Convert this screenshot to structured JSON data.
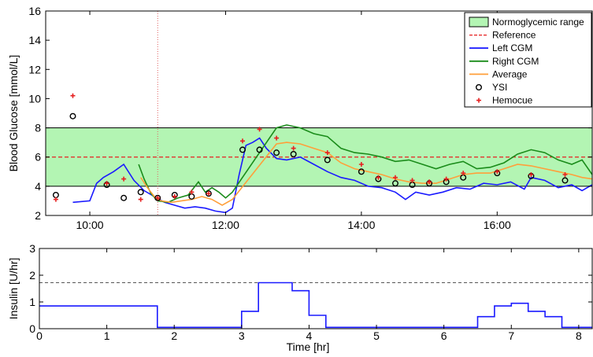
{
  "chart_data": [
    {
      "type": "line",
      "ylabel": "Blood Glucose [mmol/L]",
      "xlabel": "",
      "x_unit": "clock time (hours)",
      "xlim": [
        9.35,
        17.4
      ],
      "ylim": [
        2,
        16
      ],
      "x_ticks": [
        10,
        12,
        14,
        16
      ],
      "x_tick_labels": [
        "10:00",
        "12:00",
        "14:00",
        "16:00"
      ],
      "y_ticks": [
        2,
        4,
        6,
        8,
        10,
        12,
        14,
        16
      ],
      "y_tick_labels": [
        "2",
        "4",
        "6",
        "8",
        "10",
        "12",
        "14",
        "16"
      ],
      "grid": false,
      "legend_position": "top-right",
      "normoglycemic_range": {
        "label": "Normoglycemic range",
        "low": 4,
        "high": 8,
        "color": "#b3f5b3"
      },
      "reference": {
        "label": "Reference",
        "value": 6,
        "color": "#e62020"
      },
      "event_marker_x": 11.0,
      "series": [
        {
          "name": "Left CGM",
          "color": "#1a1aff",
          "x": [
            9.75,
            10.0,
            10.1,
            10.2,
            10.35,
            10.5,
            10.65,
            10.8,
            10.95,
            11.1,
            11.25,
            11.4,
            11.55,
            11.7,
            11.85,
            12.0,
            12.1,
            12.2,
            12.3,
            12.4,
            12.5,
            12.6,
            12.75,
            12.9,
            13.1,
            13.3,
            13.5,
            13.7,
            13.9,
            14.1,
            14.3,
            14.5,
            14.65,
            14.8,
            15.0,
            15.2,
            15.4,
            15.6,
            15.8,
            16.0,
            16.2,
            16.4,
            16.5,
            16.7,
            16.9,
            17.1,
            17.25,
            17.4
          ],
          "values": [
            2.9,
            3.0,
            4.2,
            4.6,
            5.0,
            5.5,
            4.4,
            3.7,
            3.3,
            2.9,
            2.7,
            2.5,
            2.6,
            2.5,
            2.3,
            2.2,
            2.5,
            4.8,
            6.8,
            7.0,
            7.3,
            6.6,
            5.9,
            5.8,
            6.0,
            5.5,
            5.0,
            4.6,
            4.4,
            4.0,
            3.9,
            3.6,
            3.1,
            3.6,
            3.4,
            3.6,
            3.9,
            3.8,
            4.2,
            4.1,
            4.3,
            3.8,
            4.6,
            4.4,
            3.9,
            4.1,
            3.7,
            4.1
          ]
        },
        {
          "name": "Right CGM",
          "color": "#1a8c1a",
          "x": [
            10.72,
            10.8,
            10.9,
            11.0,
            11.15,
            11.3,
            11.45,
            11.6,
            11.7,
            11.8,
            11.9,
            12.0,
            12.1,
            12.75,
            12.9,
            13.1,
            13.3,
            13.5,
            13.7,
            13.9,
            14.1,
            14.3,
            14.5,
            14.7,
            14.9,
            15.1,
            15.3,
            15.5,
            15.7,
            15.9,
            16.1,
            16.3,
            16.5,
            16.7,
            16.9,
            17.1,
            17.25,
            17.4
          ],
          "values": [
            5.5,
            4.5,
            3.5,
            3.0,
            2.9,
            3.2,
            3.4,
            4.3,
            3.6,
            3.9,
            3.6,
            3.2,
            3.6,
            8.0,
            8.2,
            8.0,
            7.6,
            7.4,
            6.6,
            6.3,
            6.2,
            6.0,
            5.7,
            5.8,
            5.5,
            5.2,
            5.5,
            5.7,
            5.2,
            5.3,
            5.6,
            6.2,
            6.5,
            6.3,
            5.8,
            5.5,
            5.8,
            4.8
          ]
        },
        {
          "name": "Average",
          "color": "#ff9f3a",
          "x": [
            10.75,
            10.85,
            10.95,
            11.05,
            11.2,
            11.35,
            11.5,
            11.65,
            11.8,
            11.95,
            12.1,
            12.75,
            12.9,
            13.1,
            13.3,
            13.5,
            13.7,
            13.9,
            14.1,
            14.3,
            14.5,
            14.7,
            14.9,
            15.1,
            15.3,
            15.5,
            15.7,
            15.9,
            16.1,
            16.3,
            16.5,
            16.7,
            16.9,
            17.1,
            17.25,
            17.4
          ],
          "values": [
            4.6,
            3.9,
            3.3,
            3.0,
            2.9,
            3.0,
            3.1,
            3.3,
            3.1,
            2.7,
            3.1,
            6.9,
            7.0,
            6.9,
            6.6,
            6.3,
            5.6,
            5.2,
            5.0,
            4.8,
            4.5,
            4.3,
            4.2,
            4.2,
            4.5,
            4.8,
            4.9,
            4.9,
            5.2,
            5.5,
            5.4,
            5.2,
            5.0,
            4.8,
            4.6,
            4.5
          ]
        },
        {
          "name": "YSI",
          "color": "#000000",
          "marker": "circle",
          "x": [
            9.5,
            9.75,
            10.25,
            10.5,
            10.75,
            11.0,
            11.25,
            11.5,
            11.75,
            12.25,
            12.5,
            12.75,
            13.0,
            13.5,
            14.0,
            14.25,
            14.5,
            14.75,
            15.0,
            15.25,
            15.5,
            16.0,
            16.5,
            17.0
          ],
          "values": [
            3.4,
            8.8,
            4.1,
            3.2,
            3.6,
            3.2,
            3.4,
            3.3,
            3.5,
            6.5,
            6.5,
            6.3,
            6.2,
            5.8,
            5.0,
            4.5,
            4.2,
            4.1,
            4.2,
            4.3,
            4.6,
            4.9,
            4.7,
            4.4
          ]
        },
        {
          "name": "Hemocue",
          "color": "#e62020",
          "marker": "plus",
          "x": [
            9.5,
            9.75,
            10.25,
            10.5,
            10.75,
            11.0,
            11.25,
            11.5,
            11.75,
            12.25,
            12.5,
            12.75,
            13.0,
            13.5,
            14.0,
            14.25,
            14.5,
            14.75,
            15.0,
            15.25,
            15.5,
            16.0,
            16.5,
            17.0
          ],
          "values": [
            3.1,
            10.2,
            4.2,
            4.5,
            3.1,
            3.2,
            3.3,
            3.6,
            3.5,
            7.1,
            7.9,
            7.3,
            6.6,
            6.3,
            5.5,
            4.6,
            4.6,
            4.4,
            4.3,
            4.5,
            4.9,
            5.0,
            4.8,
            4.8
          ]
        }
      ]
    },
    {
      "type": "line",
      "ylabel": "Insulin [U/hr]",
      "xlabel": "Time [hr]",
      "xlim": [
        0,
        8.2
      ],
      "ylim": [
        0,
        3
      ],
      "x_ticks": [
        0,
        1,
        2,
        3,
        4,
        5,
        6,
        7,
        8
      ],
      "x_tick_labels": [
        "0",
        "1",
        "2",
        "3",
        "4",
        "5",
        "6",
        "7",
        "8"
      ],
      "y_ticks": [
        0,
        1,
        2,
        3
      ],
      "y_tick_labels": [
        "0",
        "1",
        "2",
        "3"
      ],
      "grid": false,
      "reference_line": {
        "value": 1.72,
        "color": "#555555"
      },
      "series": [
        {
          "name": "",
          "color": "#1a1aff",
          "step": "post",
          "x": [
            0,
            1.75,
            3.0,
            3.25,
            3.75,
            4.0,
            4.25,
            6.5,
            6.75,
            7.0,
            7.25,
            7.5,
            7.75,
            8.0,
            8.2
          ],
          "values": [
            0.85,
            0.05,
            0.65,
            1.72,
            1.42,
            0.5,
            0.05,
            0.45,
            0.85,
            0.95,
            0.65,
            0.45,
            0.05,
            0.05,
            0.05
          ]
        }
      ]
    }
  ]
}
